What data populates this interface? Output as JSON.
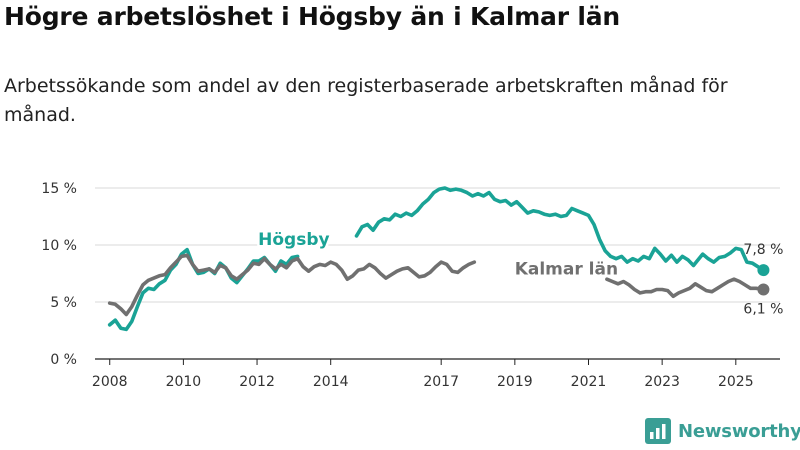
{
  "title": "Högre arbetslöshet i Högsby än i Kalmar län",
  "subtitle": "Arbetssökande som andel av den registerbaserade arbetskraften månad för månad.",
  "brand": {
    "name": "Newsworthy"
  },
  "colors": {
    "hogsby": "#1aa396",
    "kalmar": "#707070",
    "grid": "#d9d9d9",
    "axis": "#222222",
    "brand": "#3a9e95"
  },
  "chart_data": {
    "type": "line",
    "title": "Högre arbetslöshet i Högsby än i Kalmar län",
    "xlabel": "",
    "ylabel": "",
    "xlim": [
      2007.6,
      2026.2
    ],
    "ylim": [
      0,
      15
    ],
    "grid": true,
    "x_ticks": [
      2008,
      2010,
      2012,
      2014,
      2017,
      2019,
      2021,
      2023,
      2025
    ],
    "y_ticks": [
      {
        "value": 0,
        "label": "0 %"
      },
      {
        "value": 5,
        "label": "5 %"
      },
      {
        "value": 10,
        "label": "10 %"
      },
      {
        "value": 15,
        "label": "15 %"
      }
    ],
    "series": [
      {
        "name": "Högsby",
        "label_pos": [
          2013.0,
          10.0
        ],
        "end_label": "7,8 %",
        "points": [
          [
            2008.0,
            3.0
          ],
          [
            2008.15,
            3.4
          ],
          [
            2008.3,
            2.7
          ],
          [
            2008.45,
            2.6
          ],
          [
            2008.6,
            3.3
          ],
          [
            2008.75,
            4.6
          ],
          [
            2008.9,
            5.8
          ],
          [
            2009.05,
            6.2
          ],
          [
            2009.2,
            6.1
          ],
          [
            2009.35,
            6.6
          ],
          [
            2009.5,
            6.9
          ],
          [
            2009.65,
            7.8
          ],
          [
            2009.8,
            8.3
          ],
          [
            2009.95,
            9.2
          ],
          [
            2010.1,
            9.6
          ],
          [
            2010.25,
            8.3
          ],
          [
            2010.4,
            7.5
          ],
          [
            2010.55,
            7.6
          ],
          [
            2010.7,
            7.9
          ],
          [
            2010.85,
            7.5
          ],
          [
            2011.0,
            8.4
          ],
          [
            2011.15,
            8.0
          ],
          [
            2011.3,
            7.1
          ],
          [
            2011.45,
            6.7
          ],
          [
            2011.6,
            7.3
          ],
          [
            2011.75,
            7.9
          ],
          [
            2011.9,
            8.6
          ],
          [
            2012.05,
            8.6
          ],
          [
            2012.2,
            8.9
          ],
          [
            2012.35,
            8.3
          ],
          [
            2012.5,
            7.7
          ],
          [
            2012.65,
            8.6
          ],
          [
            2012.8,
            8.3
          ],
          [
            2012.95,
            8.9
          ],
          [
            2013.1,
            9.0
          ],
          null,
          [
            2014.7,
            10.8
          ],
          [
            2014.85,
            11.6
          ],
          [
            2015.0,
            11.8
          ],
          [
            2015.15,
            11.3
          ],
          [
            2015.3,
            12.0
          ],
          [
            2015.45,
            12.3
          ],
          [
            2015.6,
            12.2
          ],
          [
            2015.75,
            12.7
          ],
          [
            2015.9,
            12.5
          ],
          [
            2016.05,
            12.8
          ],
          [
            2016.2,
            12.6
          ],
          [
            2016.35,
            13.0
          ],
          [
            2016.5,
            13.6
          ],
          [
            2016.65,
            14.0
          ],
          [
            2016.8,
            14.6
          ],
          [
            2016.95,
            14.9
          ],
          [
            2017.1,
            15.0
          ],
          [
            2017.25,
            14.8
          ],
          [
            2017.4,
            14.9
          ],
          [
            2017.55,
            14.8
          ],
          [
            2017.7,
            14.6
          ],
          [
            2017.85,
            14.3
          ],
          [
            2018.0,
            14.5
          ],
          [
            2018.15,
            14.3
          ],
          [
            2018.3,
            14.6
          ],
          [
            2018.45,
            14.0
          ],
          [
            2018.6,
            13.8
          ],
          [
            2018.75,
            13.9
          ],
          [
            2018.9,
            13.5
          ],
          [
            2019.05,
            13.8
          ],
          [
            2019.2,
            13.3
          ],
          [
            2019.35,
            12.8
          ],
          [
            2019.5,
            13.0
          ],
          [
            2019.65,
            12.9
          ],
          [
            2019.8,
            12.7
          ],
          [
            2019.95,
            12.6
          ],
          [
            2020.1,
            12.7
          ],
          [
            2020.25,
            12.5
          ],
          [
            2020.4,
            12.6
          ],
          [
            2020.55,
            13.2
          ],
          [
            2020.7,
            13.0
          ],
          [
            2020.85,
            12.8
          ],
          [
            2021.0,
            12.6
          ],
          [
            2021.15,
            11.8
          ],
          [
            2021.3,
            10.5
          ],
          [
            2021.45,
            9.5
          ],
          [
            2021.6,
            9.0
          ],
          [
            2021.75,
            8.8
          ],
          [
            2021.9,
            9.0
          ],
          [
            2022.05,
            8.5
          ],
          [
            2022.2,
            8.8
          ],
          [
            2022.35,
            8.6
          ],
          [
            2022.5,
            9.0
          ],
          [
            2022.65,
            8.8
          ],
          [
            2022.8,
            9.7
          ],
          [
            2022.95,
            9.2
          ],
          [
            2023.1,
            8.6
          ],
          [
            2023.25,
            9.1
          ],
          [
            2023.4,
            8.5
          ],
          [
            2023.55,
            9.0
          ],
          [
            2023.7,
            8.7
          ],
          [
            2023.85,
            8.2
          ],
          [
            2023.95,
            8.6
          ],
          [
            2024.1,
            9.2
          ],
          [
            2024.25,
            8.8
          ],
          [
            2024.4,
            8.5
          ],
          [
            2024.55,
            8.9
          ],
          [
            2024.7,
            9.0
          ],
          [
            2024.85,
            9.3
          ],
          [
            2025.0,
            9.7
          ],
          [
            2025.15,
            9.6
          ],
          [
            2025.3,
            8.5
          ],
          [
            2025.45,
            8.4
          ],
          [
            2025.6,
            8.1
          ],
          [
            2025.75,
            7.8
          ]
        ]
      },
      {
        "name": "Kalmar län",
        "label_pos": [
          2020.4,
          7.4
        ],
        "end_label": "6,1 %",
        "points": [
          [
            2008.0,
            4.9
          ],
          [
            2008.15,
            4.8
          ],
          [
            2008.3,
            4.4
          ],
          [
            2008.45,
            3.9
          ],
          [
            2008.6,
            4.6
          ],
          [
            2008.75,
            5.6
          ],
          [
            2008.9,
            6.5
          ],
          [
            2009.05,
            6.9
          ],
          [
            2009.2,
            7.1
          ],
          [
            2009.35,
            7.3
          ],
          [
            2009.5,
            7.4
          ],
          [
            2009.65,
            8.0
          ],
          [
            2009.8,
            8.5
          ],
          [
            2009.95,
            9.0
          ],
          [
            2010.1,
            9.1
          ],
          [
            2010.25,
            8.3
          ],
          [
            2010.4,
            7.7
          ],
          [
            2010.55,
            7.8
          ],
          [
            2010.7,
            7.9
          ],
          [
            2010.85,
            7.6
          ],
          [
            2011.0,
            8.2
          ],
          [
            2011.15,
            8.0
          ],
          [
            2011.3,
            7.3
          ],
          [
            2011.45,
            7.0
          ],
          [
            2011.6,
            7.4
          ],
          [
            2011.75,
            7.8
          ],
          [
            2011.9,
            8.4
          ],
          [
            2012.05,
            8.3
          ],
          [
            2012.2,
            8.8
          ],
          [
            2012.35,
            8.3
          ],
          [
            2012.5,
            7.9
          ],
          [
            2012.65,
            8.3
          ],
          [
            2012.8,
            8.0
          ],
          [
            2012.95,
            8.6
          ],
          [
            2013.1,
            8.8
          ],
          [
            2013.25,
            8.1
          ],
          [
            2013.4,
            7.7
          ],
          [
            2013.55,
            8.1
          ],
          [
            2013.7,
            8.3
          ],
          [
            2013.85,
            8.2
          ],
          [
            2014.0,
            8.5
          ],
          [
            2014.15,
            8.3
          ],
          [
            2014.3,
            7.8
          ],
          [
            2014.45,
            7.0
          ],
          [
            2014.6,
            7.3
          ],
          [
            2014.75,
            7.8
          ],
          [
            2014.9,
            7.9
          ],
          [
            2015.05,
            8.3
          ],
          [
            2015.2,
            8.0
          ],
          [
            2015.35,
            7.5
          ],
          [
            2015.5,
            7.1
          ],
          [
            2015.65,
            7.4
          ],
          [
            2015.8,
            7.7
          ],
          [
            2015.95,
            7.9
          ],
          [
            2016.1,
            8.0
          ],
          [
            2016.25,
            7.6
          ],
          [
            2016.4,
            7.2
          ],
          [
            2016.55,
            7.3
          ],
          [
            2016.7,
            7.6
          ],
          [
            2016.85,
            8.1
          ],
          [
            2017.0,
            8.5
          ],
          [
            2017.15,
            8.3
          ],
          [
            2017.3,
            7.7
          ],
          [
            2017.45,
            7.6
          ],
          [
            2017.6,
            8.0
          ],
          [
            2017.75,
            8.3
          ],
          [
            2017.9,
            8.5
          ],
          null,
          [
            2021.5,
            7.0
          ],
          [
            2021.65,
            6.8
          ],
          [
            2021.8,
            6.6
          ],
          [
            2021.95,
            6.8
          ],
          [
            2022.1,
            6.5
          ],
          [
            2022.25,
            6.1
          ],
          [
            2022.4,
            5.8
          ],
          [
            2022.55,
            5.9
          ],
          [
            2022.7,
            5.9
          ],
          [
            2022.85,
            6.1
          ],
          [
            2023.0,
            6.1
          ],
          [
            2023.15,
            6.0
          ],
          [
            2023.3,
            5.5
          ],
          [
            2023.45,
            5.8
          ],
          [
            2023.6,
            6.0
          ],
          [
            2023.75,
            6.2
          ],
          [
            2023.9,
            6.6
          ],
          [
            2024.05,
            6.3
          ],
          [
            2024.2,
            6.0
          ],
          [
            2024.35,
            5.9
          ],
          [
            2024.5,
            6.2
          ],
          [
            2024.65,
            6.5
          ],
          [
            2024.8,
            6.8
          ],
          [
            2024.95,
            7.0
          ],
          [
            2025.1,
            6.8
          ],
          [
            2025.25,
            6.5
          ],
          [
            2025.4,
            6.2
          ],
          [
            2025.55,
            6.2
          ],
          [
            2025.75,
            6.1
          ]
        ]
      }
    ]
  }
}
